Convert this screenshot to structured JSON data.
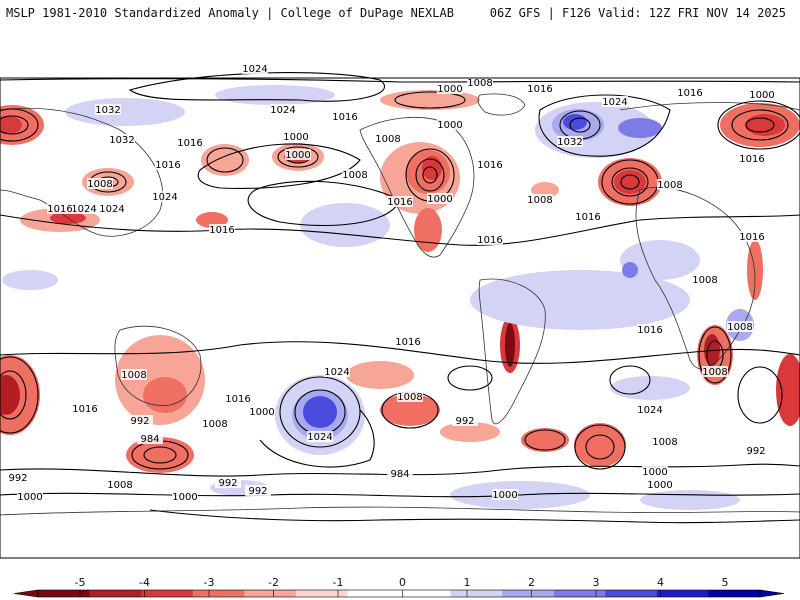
{
  "header": {
    "left_title": "MSLP 1981-2010 Standardized Anomaly | College of DuPage NEXLAB",
    "right_title": "06Z GFS | F126 Valid: 12Z FRI NOV 14 2025"
  },
  "colorbar": {
    "ticks": [
      "-5",
      "-4",
      "-3",
      "-2",
      "-1",
      "0",
      "1",
      "2",
      "3",
      "4",
      "5"
    ],
    "colors": [
      "#7a0a10",
      "#b21e24",
      "#d9393a",
      "#ef6f63",
      "#f6a596",
      "#fcd6cc",
      "#ffffff",
      "#ffffff",
      "#d3d3f5",
      "#a9a9ef",
      "#7c7ce6",
      "#4a4ade",
      "#1c1cd0",
      "#0000a8"
    ]
  },
  "map": {
    "isobar_labels": [
      "1024",
      "1008",
      "1000",
      "1016",
      "1024",
      "1032",
      "1016",
      "1000",
      "1032",
      "1016",
      "1032",
      "1008",
      "1000",
      "1016",
      "1024",
      "1000",
      "1008",
      "1008",
      "1024",
      "1016",
      "1016",
      "1024",
      "1016",
      "1016",
      "1008",
      "1000",
      "1016",
      "1008",
      "1008",
      "1016",
      "1016",
      "1016",
      "1008",
      "1008",
      "1016",
      "1024",
      "1016",
      "1000",
      "1008",
      "1016",
      "1016",
      "1008",
      "1016",
      "992",
      "984",
      "1024",
      "1000",
      "992",
      "1024",
      "1008",
      "992",
      "1000",
      "1008",
      "992",
      "1000",
      "984",
      "1000",
      "992",
      "1000",
      "1000",
      "1008",
      "992",
      "1008",
      "1024"
    ]
  }
}
